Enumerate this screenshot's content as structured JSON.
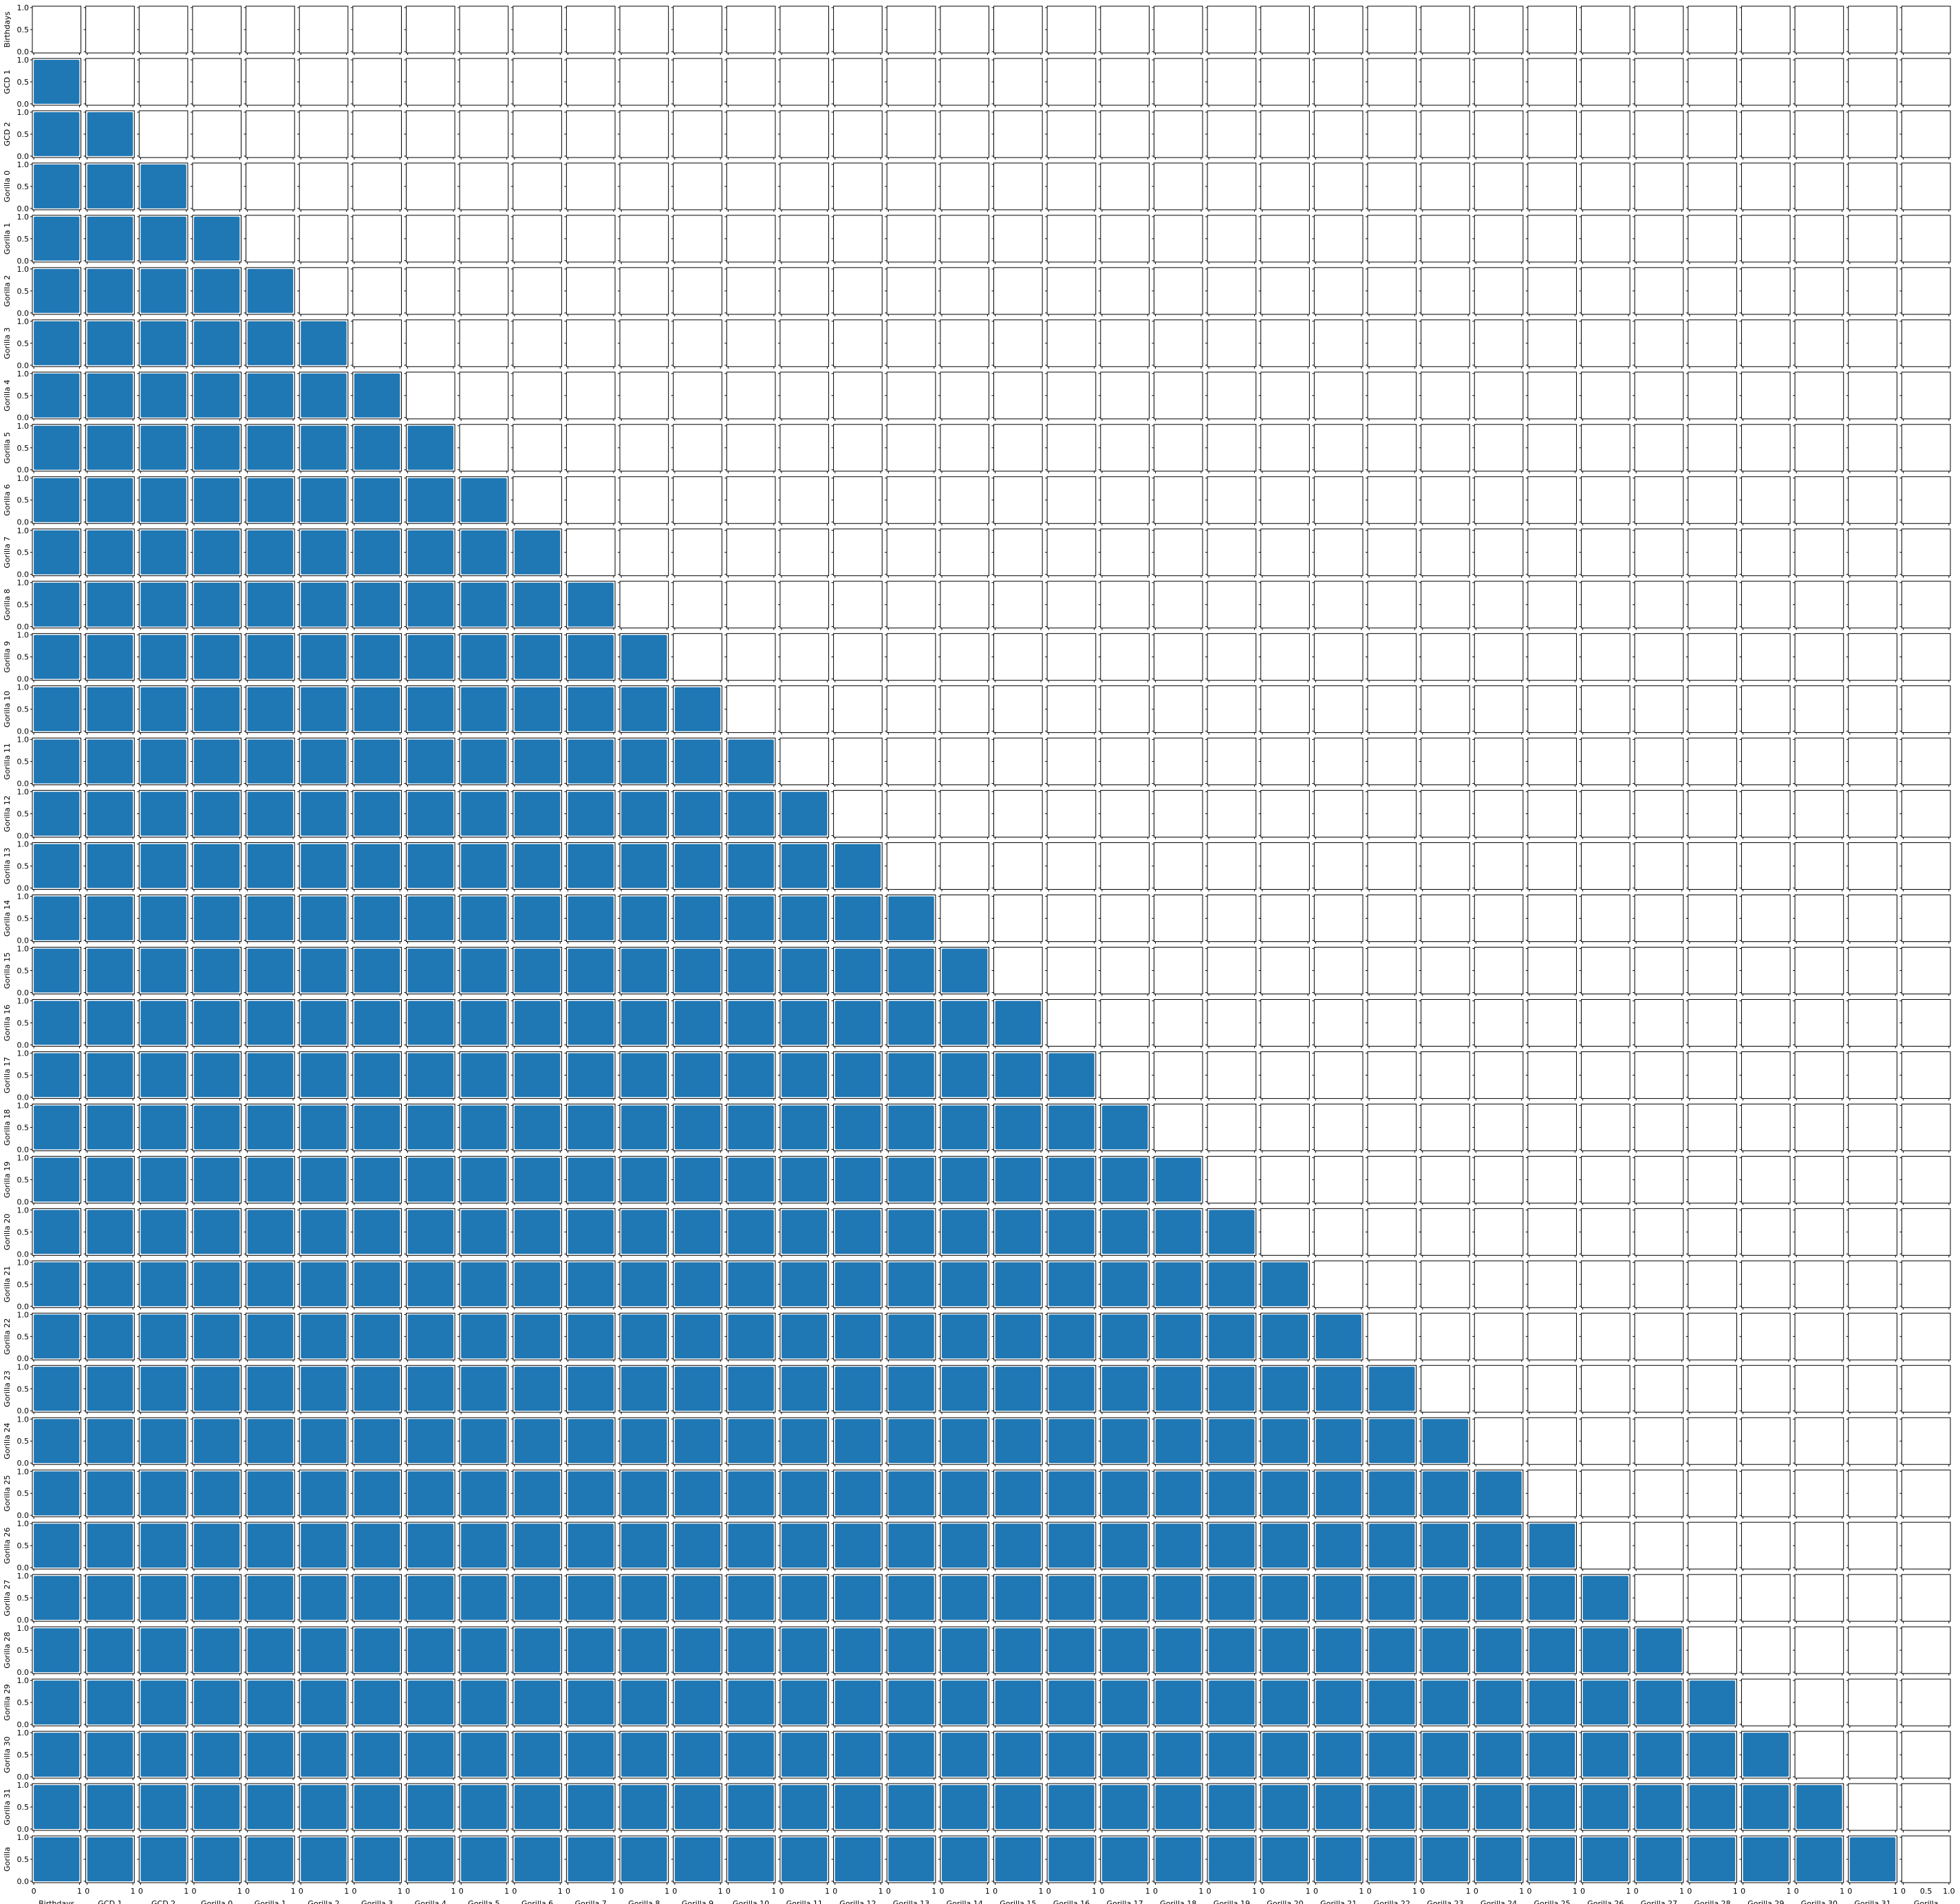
{
  "chart_data": {
    "type": "scatter",
    "layout": "pair-plot lower-triangle grid",
    "variables": [
      "Birthdays",
      "GCD 1",
      "GCD 2",
      "Gorilla 0",
      "Gorilla 1",
      "Gorilla 2",
      "Gorilla 3",
      "Gorilla 4",
      "Gorilla 5",
      "Gorilla 6",
      "Gorilla 7",
      "Gorilla 8",
      "Gorilla 9",
      "Gorilla 10",
      "Gorilla 11",
      "Gorilla 12",
      "Gorilla 13",
      "Gorilla 14",
      "Gorilla 15",
      "Gorilla 16",
      "Gorilla 17",
      "Gorilla 18",
      "Gorilla 19",
      "Gorilla 20",
      "Gorilla 21",
      "Gorilla 22",
      "Gorilla 23",
      "Gorilla 24",
      "Gorilla 25",
      "Gorilla 26",
      "Gorilla 27",
      "Gorilla 28",
      "Gorilla 29",
      "Gorilla 30",
      "Gorilla 31",
      "Gorilla"
    ],
    "xlim": [
      0,
      1
    ],
    "ylim": [
      0,
      1
    ],
    "x_tick_labels": [
      "0",
      "1"
    ],
    "y_tick_labels": [
      "0.0",
      "0.5",
      "1.0"
    ],
    "last_x_tick_labels": [
      "0",
      "0.5",
      "1.0"
    ],
    "cell_content": "uniformly dense scatter covering [0,1]x[0,1]",
    "marker_color": "#1f77b4",
    "grid": false,
    "legend": "none"
  }
}
